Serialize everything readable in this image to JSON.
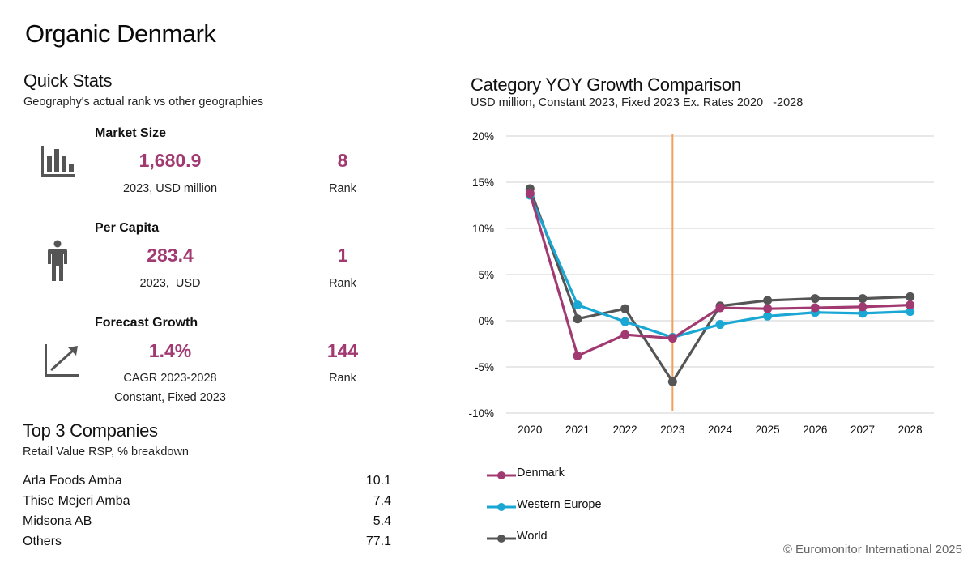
{
  "page": {
    "title": "Organic Denmark",
    "footer": "© Euromonitor International 2025"
  },
  "quick_stats": {
    "title": "Quick Stats",
    "subtitle": "Geography's actual rank vs other geographies",
    "items": [
      {
        "icon": "bar-chart-icon",
        "label": "Market Size",
        "value": "1,680.9",
        "caption": "2023, USD million",
        "caption2": "",
        "rank": "8",
        "rank_label": "Rank"
      },
      {
        "icon": "person-icon",
        "label": "Per Capita",
        "value": "283.4",
        "caption": "2023,  USD",
        "caption2": "",
        "rank": "1",
        "rank_label": "Rank"
      },
      {
        "icon": "trend-up-icon",
        "label": "Forecast Growth",
        "value": "1.4%",
        "caption": "CAGR 2023-2028",
        "caption2": "Constant, Fixed 2023",
        "rank": "144",
        "rank_label": "Rank"
      }
    ]
  },
  "companies": {
    "title": "Top 3 Companies",
    "subtitle": "Retail Value RSP, % breakdown",
    "rows": [
      {
        "name": "Arla Foods Amba",
        "value": "10.1"
      },
      {
        "name": "Thise Mejeri Amba",
        "value": "7.4"
      },
      {
        "name": "Midsona AB",
        "value": "5.4"
      },
      {
        "name": "Others",
        "value": "77.1"
      }
    ]
  },
  "colors": {
    "accent": "#a23a72",
    "denmark": "#a23a72",
    "western_europe": "#1aa7d4",
    "world": "#555555",
    "marker_line": "#f0a15a",
    "grid": "#d9d9d9"
  },
  "chart_data": {
    "type": "line",
    "title": "Category YOY Growth Comparison",
    "subtitle": "USD million, Constant 2023, Fixed 2023 Ex. Rates 2020   -2028",
    "xlabel": "",
    "ylabel": "",
    "x": [
      "2020",
      "2021",
      "2022",
      "2023",
      "2024",
      "2025",
      "2026",
      "2027",
      "2028"
    ],
    "ylim": [
      -10,
      20
    ],
    "yticks": [
      -10,
      -5,
      0,
      5,
      10,
      15,
      20
    ],
    "ytick_labels": [
      "-10%",
      "-5%",
      "0%",
      "5%",
      "10%",
      "15%",
      "20%"
    ],
    "grid": true,
    "legend_position": "bottom-left",
    "annotation": {
      "type": "vertical-line",
      "x": "2023"
    },
    "series": [
      {
        "name": "Denmark",
        "color": "#a23a72",
        "values": [
          13.8,
          -3.8,
          -1.5,
          -1.9,
          1.4,
          1.3,
          1.4,
          1.5,
          1.7
        ]
      },
      {
        "name": "Western Europe",
        "color": "#1aa7d4",
        "values": [
          13.6,
          1.7,
          -0.1,
          -1.8,
          -0.4,
          0.5,
          0.9,
          0.8,
          1.0
        ]
      },
      {
        "name": "World",
        "color": "#555555",
        "values": [
          14.3,
          0.2,
          1.3,
          -6.6,
          1.6,
          2.2,
          2.4,
          2.4,
          2.6
        ]
      }
    ]
  }
}
